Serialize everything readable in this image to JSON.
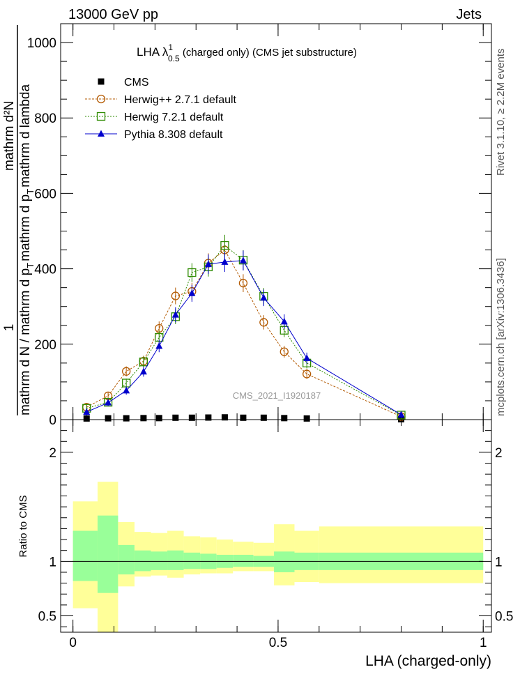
{
  "header": {
    "left": "13000 GeV pp",
    "right": "Jets",
    "side_top": "Rivet 3.1.10, ≥ 2.2M events",
    "side_bottom": "mcplots.cern.ch [arXiv:1306.3436]"
  },
  "chart_data": [
    {
      "type": "line",
      "title": "LHA λ¹₀.₅ (charged only) (CMS jet substructure)",
      "title_parts": {
        "main": "LHA λ",
        "sup": "1",
        "sub": "0.5",
        "rest": " (charged only) (CMS jet substructure)"
      },
      "watermark": "CMS_2021_I1920187",
      "ylabel_numerator": "1",
      "ylabel_denominator": "mathrm d N / mathrm d p_T mathrm d p_T mathrm d lambda",
      "ylabel_parts": {
        "num": "mathrm d²N",
        "num_sep": " ",
        "den1": "mathrm d p",
        "den1_sub": "T",
        "den2": "mathrm d lambda",
        "left": "mathrm d N / mathrm d p",
        "left_sub": "T",
        "left_tail": "mathrm d p",
        "one": "1"
      },
      "xlim": [
        -0.03,
        1.02
      ],
      "ylim": [
        0,
        1050
      ],
      "y_ticks": [
        0,
        200,
        400,
        600,
        800,
        1000
      ],
      "y_tick_labels": [
        "0",
        "200",
        "400",
        "600",
        "800",
        "1000"
      ],
      "legend_position": "top-left",
      "series": [
        {
          "name": "CMS",
          "color": "#000000",
          "marker": "square",
          "x": [
            0.0333,
            0.0857,
            0.13,
            0.172,
            0.21,
            0.25,
            0.29,
            0.33,
            0.37,
            0.415,
            0.465,
            0.515,
            0.57,
            0.8
          ],
          "y": [
            3,
            3.5,
            3.5,
            4,
            4,
            5,
            5,
            5.5,
            6,
            5,
            5,
            4,
            3,
            1
          ]
        },
        {
          "name": "Herwig++ 2.7.1 default",
          "color": "#b35900",
          "marker": "circle",
          "x": [
            0.0333,
            0.0857,
            0.13,
            0.172,
            0.21,
            0.25,
            0.29,
            0.33,
            0.37,
            0.415,
            0.465,
            0.515,
            0.57,
            0.8
          ],
          "y": [
            33,
            63,
            128,
            155,
            242,
            328,
            340,
            415,
            450,
            362,
            258,
            180,
            121,
            8
          ]
        },
        {
          "name": "Herwig 7.2.1 default",
          "color": "#2e8b00",
          "marker": "open-square",
          "x": [
            0.0333,
            0.0857,
            0.13,
            0.172,
            0.21,
            0.25,
            0.29,
            0.33,
            0.37,
            0.415,
            0.465,
            0.515,
            0.57,
            0.8
          ],
          "y": [
            30,
            46,
            97,
            153,
            218,
            273,
            390,
            405,
            462,
            423,
            327,
            237,
            150,
            12
          ]
        },
        {
          "name": "Pythia 8.308 default",
          "color": "#0000cc",
          "marker": "triangle",
          "x": [
            0.0333,
            0.0857,
            0.13,
            0.172,
            0.21,
            0.25,
            0.29,
            0.33,
            0.37,
            0.415,
            0.465,
            0.515,
            0.57,
            0.8
          ],
          "y": [
            20,
            45,
            77,
            127,
            195,
            278,
            335,
            412,
            418,
            422,
            323,
            260,
            163,
            13
          ]
        }
      ]
    },
    {
      "type": "area",
      "ylabel": "Ratio to CMS",
      "xlabel": "LHA (charged-only)",
      "xlim": [
        -0.03,
        1.02
      ],
      "ylim": [
        0.35,
        2.3
      ],
      "x_ticks": [
        0,
        0.5,
        1
      ],
      "x_tick_labels": [
        "0",
        "0.5",
        "1"
      ],
      "y_ticks": [
        0.5,
        1,
        2
      ],
      "y_tick_labels": [
        "0.5",
        "1",
        "2"
      ],
      "reference_line": 1,
      "bands": {
        "colors": {
          "stat": "#99ff99",
          "total": "#ffff99"
        },
        "bin_edges": [
          0,
          0.06,
          0.11,
          0.15,
          0.19,
          0.23,
          0.27,
          0.31,
          0.35,
          0.39,
          0.44,
          0.49,
          0.54,
          0.6,
          1.0
        ],
        "stat_low": [
          0.82,
          0.71,
          0.88,
          0.91,
          0.92,
          0.92,
          0.93,
          0.93,
          0.94,
          0.95,
          0.95,
          0.9,
          0.92,
          0.92
        ],
        "stat_high": [
          1.28,
          1.42,
          1.15,
          1.1,
          1.09,
          1.1,
          1.08,
          1.07,
          1.06,
          1.06,
          1.05,
          1.09,
          1.08,
          1.08
        ],
        "total_low": [
          0.57,
          0.35,
          0.77,
          0.86,
          0.87,
          0.85,
          0.88,
          0.89,
          0.89,
          0.91,
          0.91,
          0.78,
          0.81,
          0.8
        ],
        "total_high": [
          1.55,
          1.73,
          1.36,
          1.27,
          1.26,
          1.28,
          1.23,
          1.22,
          1.2,
          1.18,
          1.17,
          1.34,
          1.28,
          1.32
        ]
      }
    }
  ]
}
